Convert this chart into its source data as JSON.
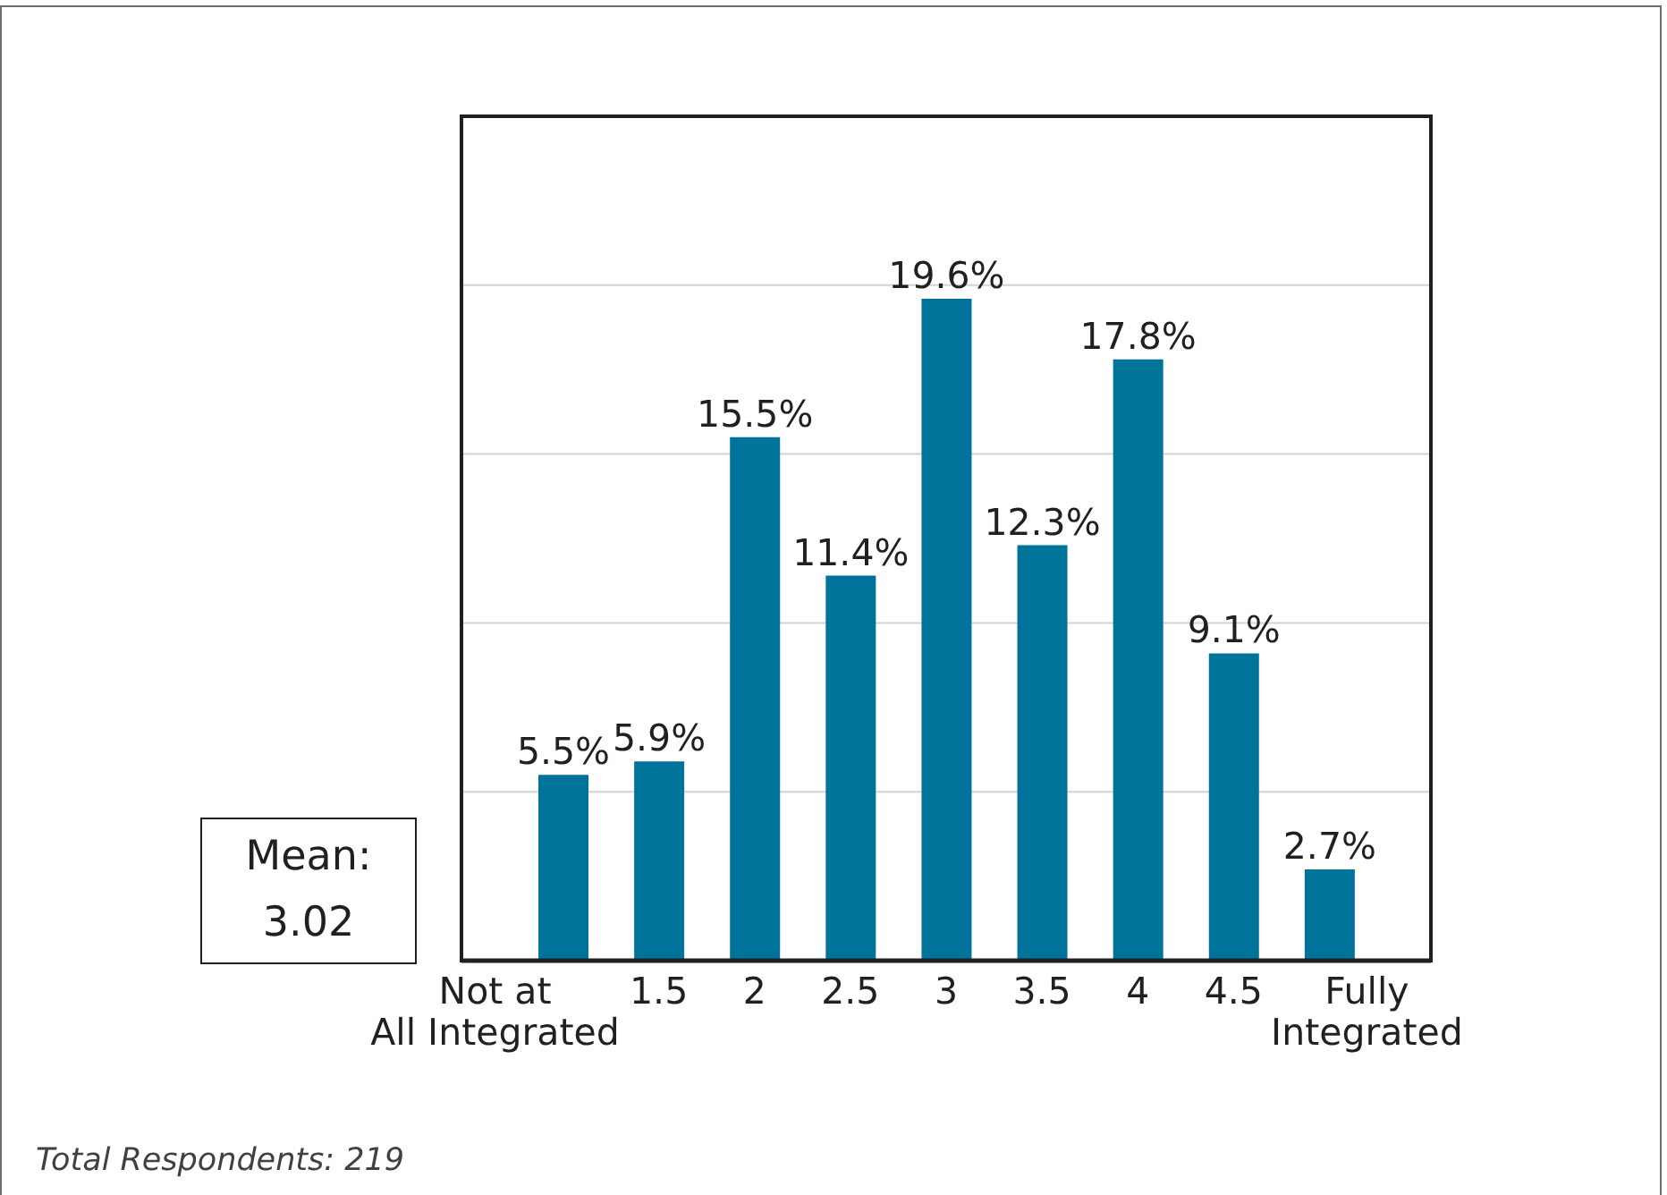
{
  "chart_data": {
    "type": "bar",
    "categories": [
      "Not at\nAll Integrated",
      "1.5",
      "2",
      "2.5",
      "3",
      "3.5",
      "4",
      "4.5",
      "Fully\nIntegrated"
    ],
    "values": [
      5.5,
      5.9,
      15.5,
      11.4,
      19.6,
      12.3,
      17.8,
      9.1,
      2.7
    ],
    "value_labels": [
      "5.5%",
      "5.9%",
      "15.5%",
      "11.4%",
      "19.6%",
      "12.3%",
      "17.8%",
      "9.1%",
      "2.7%"
    ],
    "color": "#00739a",
    "ylim": [
      0,
      25
    ],
    "yticks": [
      {
        "value": 0,
        "label": null
      },
      {
        "value": 5,
        "label": null
      },
      {
        "value": 10,
        "label": null
      },
      {
        "value": 15,
        "label": null
      },
      {
        "value": 20,
        "label": null
      },
      {
        "value": 25,
        "label": null
      }
    ],
    "tick_labels": "x",
    "grid": "y",
    "annotations": [
      "Mean:\n3.02",
      "Total Respondents: 219"
    ]
  }
}
